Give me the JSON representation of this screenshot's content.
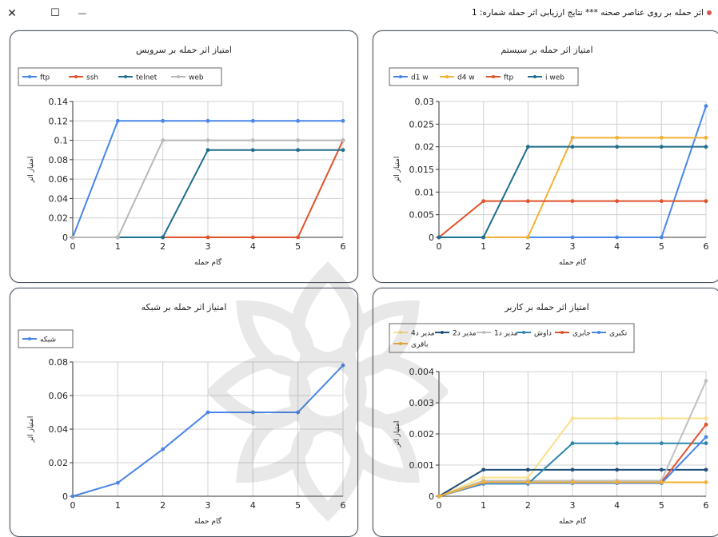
{
  "window": {
    "title": "اثر حمله بر روی عناصر صحنه *** نتایج ارزیابی اثر حمله شماره: 1",
    "close_glyph": "✕",
    "maximize_glyph": "☐",
    "minimize_glyph": "—"
  },
  "chart_data": [
    {
      "type": "line",
      "title": "امتیاز اثر حمله بر سرویس",
      "xlabel": "گام حمله",
      "ylabel": "امتیاز اثر",
      "x": [
        0,
        1,
        2,
        3,
        4,
        5,
        6
      ],
      "xlim": [
        0,
        6
      ],
      "ylim": [
        0,
        0.14
      ],
      "yticks": [
        0,
        0.02,
        0.04,
        0.06,
        0.08,
        0.1,
        0.12,
        0.14
      ],
      "ytick_labels": [
        "0",
        "0.02",
        "0.04",
        "0.06",
        "0.08",
        "0.1",
        "0.12",
        "0.14"
      ],
      "grid": true,
      "legend_position": "top-left",
      "series": [
        {
          "name": "ftp",
          "color": "#4a86e8",
          "values": [
            0,
            0.12,
            0.12,
            0.12,
            0.12,
            0.12,
            0.12
          ]
        },
        {
          "name": "ssh",
          "color": "#e0522a",
          "values": [
            0,
            0,
            0,
            0,
            0,
            0,
            0.1
          ]
        },
        {
          "name": "telnet",
          "color": "#1f6e8c",
          "values": [
            0,
            0,
            0,
            0.09,
            0.09,
            0.09,
            0.09
          ]
        },
        {
          "name": "web",
          "color": "#b8b8b8",
          "values": [
            0,
            0,
            0.1,
            0.1,
            0.1,
            0.1,
            0.1
          ]
        }
      ]
    },
    {
      "type": "line",
      "title": "امتیاز اثر حمله بر سیستم",
      "xlabel": "گام حمله",
      "ylabel": "امتیاز اثر",
      "x": [
        0,
        1,
        2,
        3,
        4,
        5,
        6
      ],
      "xlim": [
        0,
        6
      ],
      "ylim": [
        0,
        0.03
      ],
      "yticks": [
        0,
        0.005,
        0.01,
        0.015,
        0.02,
        0.025,
        0.03
      ],
      "ytick_labels": [
        "0",
        "0.005",
        "0.01",
        "0.015",
        "0.02",
        "0.025",
        "0.03"
      ],
      "grid": true,
      "legend_position": "top-left",
      "series": [
        {
          "name": "d1 w",
          "color": "#4a86e8",
          "values": [
            0,
            0,
            0,
            0,
            0,
            0,
            0.029
          ]
        },
        {
          "name": "d4 w",
          "color": "#f2b134",
          "values": [
            0,
            0,
            0,
            0.022,
            0.022,
            0.022,
            0.022
          ]
        },
        {
          "name": "ftp",
          "color": "#e0522a",
          "values": [
            0,
            0.008,
            0.008,
            0.008,
            0.008,
            0.008,
            0.008
          ]
        },
        {
          "name": "i web",
          "color": "#1f6e8c",
          "values": [
            0,
            0,
            0.02,
            0.02,
            0.02,
            0.02,
            0.02
          ]
        }
      ]
    },
    {
      "type": "line",
      "title": "امتیاز اثر حمله بر شبکه",
      "xlabel": "گام حمله",
      "ylabel": "امتیاز اثر",
      "x": [
        0,
        1,
        2,
        3,
        4,
        5,
        6
      ],
      "xlim": [
        0,
        6
      ],
      "ylim": [
        0,
        0.08
      ],
      "yticks": [
        0,
        0.02,
        0.04,
        0.06,
        0.08
      ],
      "ytick_labels": [
        "0",
        "0.02",
        "0.04",
        "0.06",
        "0.08"
      ],
      "grid": true,
      "legend_position": "top-left",
      "series": [
        {
          "name": "شبکه",
          "color": "#4a86e8",
          "values": [
            0,
            0.008,
            0.028,
            0.05,
            0.05,
            0.05,
            0.078
          ]
        }
      ]
    },
    {
      "type": "line",
      "title": "امتیاز اثر حمله بر کاربر",
      "xlabel": "گام حمله",
      "ylabel": "امتیاز اثر",
      "x": [
        0,
        1,
        2,
        3,
        4,
        5,
        6
      ],
      "xlim": [
        0,
        6
      ],
      "ylim": [
        0,
        0.004
      ],
      "yticks": [
        0,
        0.001,
        0.002,
        0.003,
        0.004
      ],
      "ytick_labels": [
        "0",
        "0.001",
        "0.002",
        "0.003",
        "0.004"
      ],
      "grid": true,
      "legend_position": "top-left",
      "series": [
        {
          "name": "مدیر د4",
          "color": "#fbe08a",
          "values": [
            0,
            0.0006,
            0.0006,
            0.0025,
            0.0025,
            0.0025,
            0.0025
          ]
        },
        {
          "name": "مدیر د2",
          "color": "#1f4e79",
          "values": [
            0,
            0.00085,
            0.00085,
            0.00085,
            0.00085,
            0.00085,
            0.00085
          ]
        },
        {
          "name": "مدیر د1",
          "color": "#c0c0c0",
          "values": [
            0,
            0.0005,
            0.0005,
            0.0005,
            0.0005,
            0.0005,
            0.0037
          ]
        },
        {
          "name": "داوش",
          "color": "#2e86ab",
          "values": [
            0,
            0.0004,
            0.0004,
            0.0017,
            0.0017,
            0.0017,
            0.0017
          ]
        },
        {
          "name": "جابری",
          "color": "#e0522a",
          "values": [
            0,
            0.00045,
            0.00045,
            0.00045,
            0.00045,
            0.00045,
            0.0023
          ]
        },
        {
          "name": "تکبری",
          "color": "#4a86e8",
          "values": [
            0,
            0.00042,
            0.00042,
            0.00042,
            0.00042,
            0.00042,
            0.0019
          ]
        },
        {
          "name": "باقری",
          "color": "#f2b134",
          "values": [
            0,
            0.00045,
            0.00045,
            0.00045,
            0.00045,
            0.00045,
            0.00045
          ]
        }
      ]
    }
  ]
}
